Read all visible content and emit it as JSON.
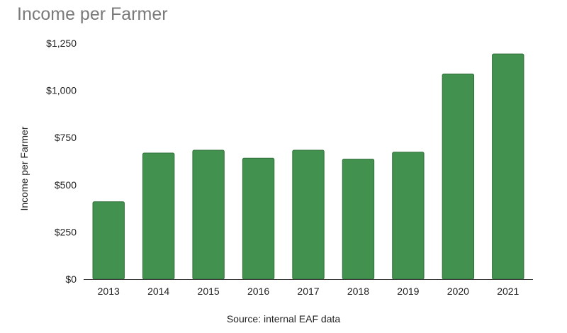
{
  "chart_data": {
    "type": "bar",
    "title": "Income per Farmer",
    "xlabel": "Source: internal EAF data",
    "ylabel": "Income per Farmer",
    "categories": [
      "2013",
      "2014",
      "2015",
      "2016",
      "2017",
      "2018",
      "2019",
      "2020",
      "2021"
    ],
    "values": [
      410,
      668,
      683,
      641,
      683,
      636,
      673,
      1087,
      1193
    ],
    "ylim": [
      0,
      1250
    ],
    "yticks": [
      0,
      250,
      500,
      750,
      1000,
      1250
    ],
    "ytick_labels": [
      "$0",
      "$250",
      "$500",
      "$750",
      "$1,000",
      "$1,250"
    ],
    "bar_color": "#43914f",
    "bar_stroke_color": "#2f6f39",
    "grid": false,
    "legend": "none"
  }
}
